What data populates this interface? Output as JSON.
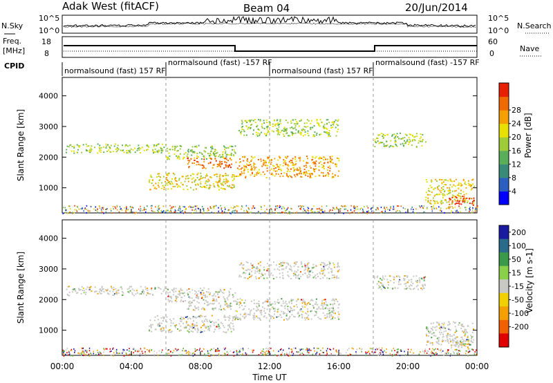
{
  "header": {
    "title": "Adak West (fitACF)",
    "beam": "Beam 04",
    "date": "20/Jun/2014"
  },
  "noise_panel": {
    "left_label": "N.Sky",
    "right_label": "N.Search",
    "left_ticks": [
      "10^5",
      "10^0"
    ],
    "right_ticks": [
      "10^5",
      "10^0"
    ]
  },
  "freq_panel": {
    "left_label_1": "Freq.",
    "left_label_2": "[MHz]",
    "right_label": "Nave",
    "left_ticks": [
      "18",
      "8"
    ],
    "right_ticks": [
      "60",
      "0"
    ]
  },
  "cpid": {
    "label": "CPID",
    "segments": [
      {
        "start_h": 0,
        "end_h": 6,
        "text": "normalsound (fast) 157 RF"
      },
      {
        "start_h": 6,
        "end_h": 12,
        "text": "normalsound (fast) -157 RF"
      },
      {
        "start_h": 12,
        "end_h": 18,
        "text": "normalsound (fast) 157 RF"
      },
      {
        "start_h": 18,
        "end_h": 24,
        "text": "normalsound (fast) -157 RF"
      }
    ]
  },
  "axes": {
    "ylabel": "Slant Range [km]",
    "xlabel": "Time UT",
    "x_ticks": [
      "00:00",
      "04:00",
      "08:00",
      "12:00",
      "16:00",
      "20:00",
      "00:00"
    ],
    "x_tick_hours": [
      0,
      4,
      8,
      12,
      16,
      20,
      24
    ],
    "y_ticks": [
      1000,
      2000,
      3000,
      4000
    ],
    "y_range": [
      180,
      4600
    ],
    "dashed_lines_h": [
      6,
      12,
      18
    ]
  },
  "chart_data": [
    {
      "type": "heatmap",
      "name": "Power",
      "colorbar_label": "Power [dB]",
      "colorbar_ticks": [
        "4",
        "8",
        "12",
        "16",
        "20",
        "24",
        "28"
      ],
      "colorbar_colors": [
        "#0000ff",
        "#2a5fc0",
        "#3a8a7a",
        "#5aae5a",
        "#9ecb3a",
        "#e8e000",
        "#f3a000",
        "#f06a00",
        "#e82000"
      ],
      "features": [
        {
          "name": "upper band 00-06",
          "t": [
            0.2,
            6.0
          ],
          "r": [
            2150,
            2450
          ],
          "level": 4
        },
        {
          "name": "upper band 06-10",
          "t": [
            6.0,
            10.0
          ],
          "r": [
            1950,
            2400
          ],
          "level": 4
        },
        {
          "name": "strong echo 08-10",
          "t": [
            7.2,
            9.8
          ],
          "r": [
            1650,
            2000
          ],
          "level": 7
        },
        {
          "name": "lower band 05-10",
          "t": [
            5.0,
            10.0
          ],
          "r": [
            950,
            1500
          ],
          "level": 5
        },
        {
          "name": "band 10-16",
          "t": [
            10.0,
            16.0
          ],
          "r": [
            1350,
            2050
          ],
          "level": 6
        },
        {
          "name": "upper arc 10-16",
          "t": [
            10.2,
            16.0
          ],
          "r": [
            2700,
            3250
          ],
          "level": 4
        },
        {
          "name": "band 18-21",
          "t": [
            18.0,
            21.0
          ],
          "r": [
            2350,
            2800
          ],
          "level": 4
        },
        {
          "name": "descending band 21-24",
          "t": [
            21.0,
            23.8
          ],
          "r": [
            500,
            1300
          ],
          "level": 5
        },
        {
          "name": "strong echo 22-24",
          "t": [
            22.3,
            23.8
          ],
          "r": [
            450,
            750
          ],
          "level": 8
        }
      ]
    },
    {
      "type": "heatmap",
      "name": "Velocity",
      "colorbar_label": "Velocity [m s-1]",
      "colorbar_ticks": [
        "200",
        "100",
        "50",
        "15",
        "-15",
        "-50",
        "-100",
        "-200"
      ],
      "colorbar_colors": [
        "#1a1aa0",
        "#2a6a8a",
        "#3a9a4a",
        "#8ad04a",
        "#c8c8c4",
        "#f0d000",
        "#f3a000",
        "#f06000",
        "#e00000"
      ],
      "features": [
        {
          "name": "upper band 00-06",
          "t": [
            0.2,
            6.0
          ],
          "r": [
            2150,
            2450
          ],
          "level": "15/-15"
        },
        {
          "name": "band 10-16",
          "t": [
            10.0,
            16.0
          ],
          "r": [
            1350,
            2050
          ],
          "level": "-15/-50"
        },
        {
          "name": "upper arc 10-16",
          "t": [
            10.2,
            16.0
          ],
          "r": [
            2700,
            3250
          ],
          "level": "-50"
        },
        {
          "name": "band 18-21",
          "t": [
            18.0,
            21.0
          ],
          "r": [
            2350,
            2800
          ],
          "level": "15/-15"
        }
      ]
    }
  ]
}
